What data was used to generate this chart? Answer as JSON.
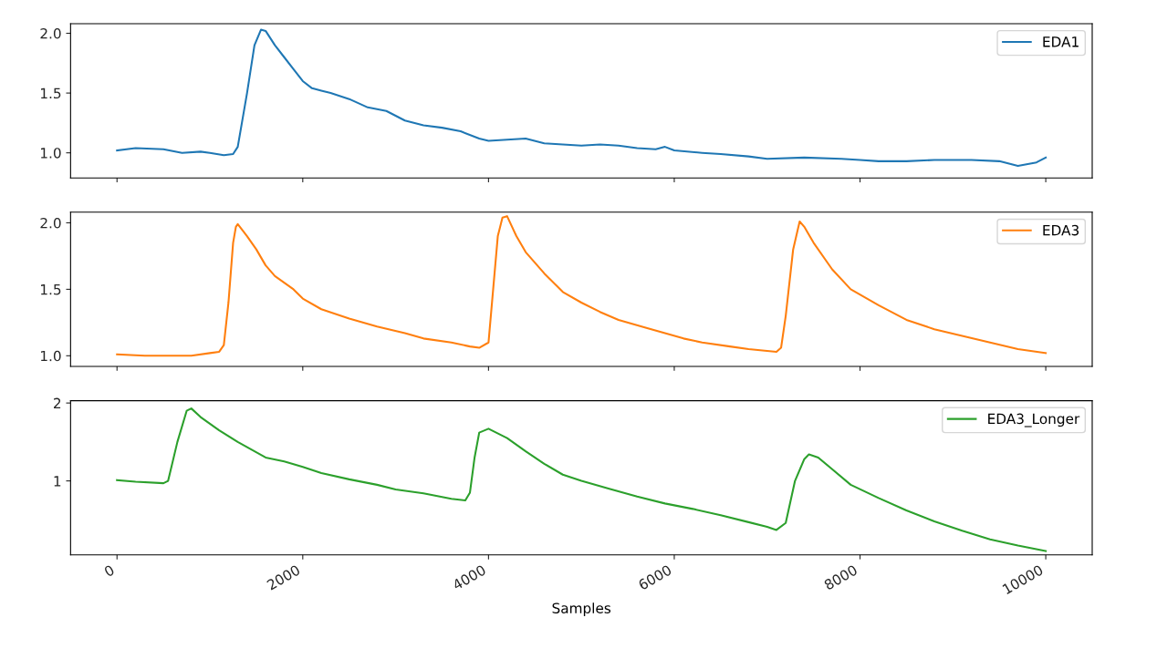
{
  "chart_data": [
    {
      "type": "line",
      "xlim": [
        -500,
        10500
      ],
      "xticks": [
        0,
        2000,
        4000,
        6000,
        8000,
        10000
      ],
      "ylim": [
        0.79,
        2.08
      ],
      "yticks": [
        {
          "value": 1.0,
          "label": "1.0"
        },
        {
          "value": 1.5,
          "label": "1.5"
        },
        {
          "value": 2.0,
          "label": "2.0"
        }
      ],
      "tick_labels": "y",
      "legend": "top right",
      "grid": false,
      "series": [
        {
          "name": "EDA1",
          "color": "#1f77b4",
          "x": [
            0,
            200,
            500,
            700,
            900,
            1000,
            1150,
            1250,
            1300,
            1400,
            1480,
            1550,
            1600,
            1700,
            1800,
            1900,
            2000,
            2100,
            2200,
            2300,
            2500,
            2700,
            2900,
            3100,
            3300,
            3500,
            3700,
            3900,
            4000,
            4200,
            4400,
            4600,
            4800,
            5000,
            5200,
            5400,
            5600,
            5800,
            5900,
            6000,
            6300,
            6500,
            6800,
            7000,
            7400,
            7800,
            8000,
            8200,
            8500,
            8800,
            9200,
            9500,
            9700,
            9900,
            10000
          ],
          "values": [
            1.02,
            1.04,
            1.03,
            1.0,
            1.01,
            1.0,
            0.98,
            0.99,
            1.05,
            1.5,
            1.9,
            2.03,
            2.02,
            1.9,
            1.8,
            1.7,
            1.6,
            1.54,
            1.52,
            1.5,
            1.45,
            1.38,
            1.35,
            1.27,
            1.23,
            1.21,
            1.18,
            1.12,
            1.1,
            1.11,
            1.12,
            1.08,
            1.07,
            1.06,
            1.07,
            1.06,
            1.04,
            1.03,
            1.05,
            1.02,
            1.0,
            0.99,
            0.97,
            0.95,
            0.96,
            0.95,
            0.94,
            0.93,
            0.93,
            0.94,
            0.94,
            0.93,
            0.89,
            0.92,
            0.96
          ]
        }
      ]
    },
    {
      "type": "line",
      "xlim": [
        -500,
        10500
      ],
      "xticks": [
        0,
        2000,
        4000,
        6000,
        8000,
        10000
      ],
      "ylim": [
        0.92,
        2.08
      ],
      "yticks": [
        {
          "value": 1.0,
          "label": "1.0"
        },
        {
          "value": 1.5,
          "label": "1.5"
        },
        {
          "value": 2.0,
          "label": "2.0"
        }
      ],
      "tick_labels": "y",
      "legend": "top right",
      "grid": false,
      "series": [
        {
          "name": "EDA3",
          "color": "#ff7f0e",
          "x": [
            0,
            300,
            800,
            1000,
            1100,
            1150,
            1200,
            1250,
            1280,
            1300,
            1400,
            1500,
            1600,
            1700,
            1900,
            2000,
            2200,
            2500,
            2800,
            3100,
            3300,
            3600,
            3800,
            3900,
            4000,
            4050,
            4100,
            4150,
            4200,
            4300,
            4400,
            4600,
            4800,
            5000,
            5200,
            5400,
            5700,
            5900,
            6100,
            6300,
            6600,
            6800,
            7100,
            7150,
            7200,
            7280,
            7350,
            7400,
            7500,
            7700,
            7900,
            8200,
            8500,
            8800,
            9100,
            9400,
            9700,
            10000
          ],
          "values": [
            1.01,
            1.0,
            1.0,
            1.02,
            1.03,
            1.08,
            1.4,
            1.85,
            1.97,
            1.99,
            1.9,
            1.8,
            1.68,
            1.6,
            1.5,
            1.43,
            1.35,
            1.28,
            1.22,
            1.17,
            1.13,
            1.1,
            1.07,
            1.06,
            1.1,
            1.5,
            1.9,
            2.04,
            2.05,
            1.9,
            1.78,
            1.62,
            1.48,
            1.4,
            1.33,
            1.27,
            1.21,
            1.17,
            1.13,
            1.1,
            1.07,
            1.05,
            1.03,
            1.06,
            1.3,
            1.8,
            2.01,
            1.97,
            1.85,
            1.65,
            1.5,
            1.38,
            1.27,
            1.2,
            1.15,
            1.1,
            1.05,
            1.02
          ]
        }
      ]
    },
    {
      "type": "line",
      "xlabel": "Samples",
      "xlim": [
        -500,
        10500
      ],
      "xticks": [
        0,
        2000,
        4000,
        6000,
        8000,
        10000
      ],
      "ylim": [
        0.05,
        2.03
      ],
      "yticks": [
        1,
        2
      ],
      "legend": "top right",
      "grid": false,
      "series": [
        {
          "name": "EDA3_Longer",
          "color": "#2ca02c",
          "x": [
            0,
            200,
            500,
            550,
            650,
            750,
            800,
            900,
            1100,
            1300,
            1600,
            1800,
            2000,
            2200,
            2500,
            2800,
            3000,
            3300,
            3600,
            3750,
            3800,
            3850,
            3900,
            4000,
            4200,
            4400,
            4600,
            4800,
            5000,
            5300,
            5600,
            5900,
            6200,
            6500,
            6800,
            7000,
            7100,
            7200,
            7300,
            7400,
            7450,
            7550,
            7700,
            7900,
            8200,
            8500,
            8800,
            9100,
            9400,
            9700,
            10000
          ],
          "values": [
            1.01,
            0.99,
            0.97,
            1.0,
            1.5,
            1.9,
            1.93,
            1.82,
            1.65,
            1.5,
            1.3,
            1.25,
            1.18,
            1.1,
            1.02,
            0.95,
            0.89,
            0.84,
            0.77,
            0.75,
            0.85,
            1.3,
            1.62,
            1.67,
            1.55,
            1.38,
            1.22,
            1.08,
            1.0,
            0.9,
            0.8,
            0.71,
            0.64,
            0.56,
            0.47,
            0.41,
            0.37,
            0.46,
            1.0,
            1.28,
            1.34,
            1.3,
            1.15,
            0.95,
            0.78,
            0.62,
            0.48,
            0.36,
            0.25,
            0.17,
            0.1
          ]
        }
      ]
    }
  ]
}
